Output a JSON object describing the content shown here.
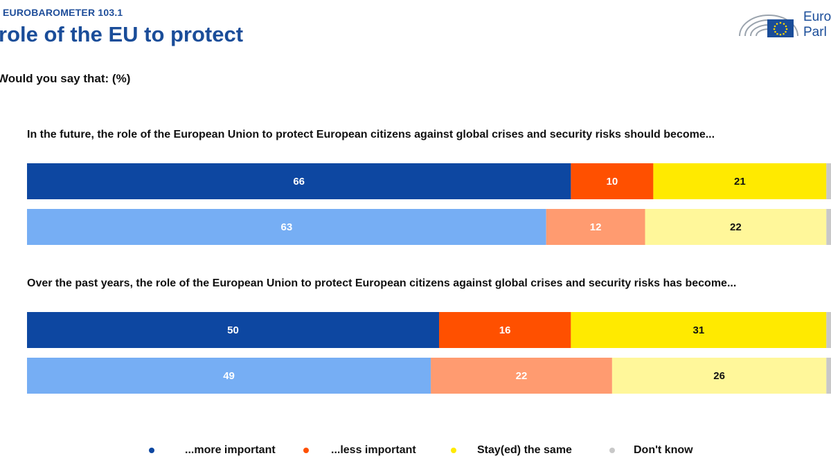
{
  "header": {
    "kicker": "EUROBAROMETER 103.1",
    "title": "role of the EU to protect",
    "subtitle": "Would you say that: (%)",
    "logo_line1": "Euro",
    "logo_line2": "Parl"
  },
  "colors": {
    "more_dark": "#0d47a1",
    "more_light": "#76aef4",
    "less_dark": "#ff5000",
    "less_light": "#ff9b70",
    "same_dark": "#ffea00",
    "same_light": "#fff79a",
    "dk": "#c8c8c8",
    "label_on_dark": "#ffffff",
    "label_on_yellow": "#111111"
  },
  "chart_data": {
    "type": "bar",
    "orientation": "horizontal-stacked",
    "unit": "%",
    "series": [
      {
        "name": "...more important",
        "legend_color": "#0d47a1"
      },
      {
        "name": "...less important",
        "legend_color": "#ff5000"
      },
      {
        "name": "Stay(ed) the same",
        "legend_color": "#ffea00"
      },
      {
        "name": "Don't know",
        "legend_color": "#c8c8c8"
      }
    ],
    "groups": [
      {
        "question": "In the future, the role of the European Union to protect European citizens against global crises and security risks should become...",
        "bars": [
          {
            "shade": "dark",
            "values": [
              66,
              10,
              21,
              3
            ]
          },
          {
            "shade": "light",
            "values": [
              63,
              12,
              22,
              3
            ]
          }
        ]
      },
      {
        "question": "Over the past years, the role of the European Union to protect European citizens against global crises and security risks has become...",
        "bars": [
          {
            "shade": "dark",
            "values": [
              50,
              16,
              31,
              3
            ]
          },
          {
            "shade": "light",
            "values": [
              49,
              22,
              26,
              3
            ]
          }
        ]
      }
    ],
    "xlim": [
      0,
      100
    ],
    "legend_position": "bottom"
  }
}
